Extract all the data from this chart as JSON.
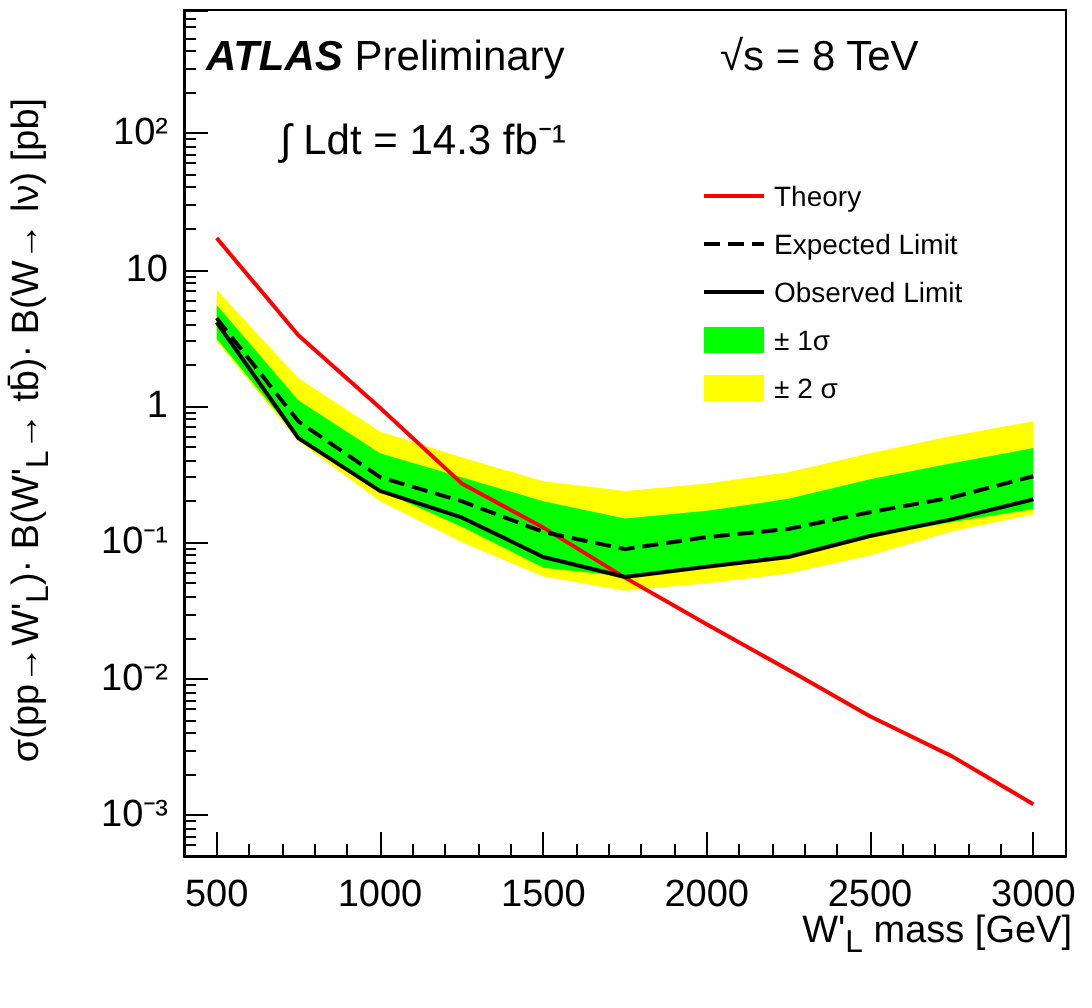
{
  "chart_data": {
    "type": "line",
    "xlabel": "W'$_{L}$ mass [GeV]",
    "ylabel": "σ(pp→W'$_{L}$)· B(W'$_{L}$→ tb̄)· B(W→ lν) [pb]",
    "annotations": [
      "ATLAS Preliminary",
      "√s = 8 TeV",
      "∫ Ldt = 14.3 fb⁻¹"
    ],
    "x": [
      500,
      750,
      1000,
      1250,
      1500,
      1750,
      2000,
      2250,
      2500,
      2750,
      3000
    ],
    "series": [
      {
        "name": "Theory",
        "color": "#ff0000",
        "line_style": "solid",
        "values": [
          17,
          3.3,
          0.97,
          0.27,
          0.128,
          0.055,
          0.025,
          0.0116,
          0.0053,
          0.0027,
          0.0012
        ]
      },
      {
        "name": "Expected Limit",
        "color": "#000000",
        "line_style": "dashed",
        "values": [
          4.4,
          0.77,
          0.3,
          0.2,
          0.119,
          0.089,
          0.109,
          0.125,
          0.166,
          0.213,
          0.305
        ]
      },
      {
        "name": "Observed Limit",
        "color": "#000000",
        "line_style": "solid",
        "values": [
          4.1,
          0.58,
          0.238,
          0.152,
          0.078,
          0.0556,
          0.066,
          0.078,
          0.111,
          0.147,
          0.206
        ]
      },
      {
        "name": "± 1σ",
        "type": "area",
        "color": "#00ff00",
        "values": [
          null,
          null,
          null,
          null,
          null,
          null,
          null,
          null,
          null,
          null,
          null
        ],
        "lower": [
          3.1,
          0.58,
          0.24,
          0.13,
          0.065,
          0.056,
          0.066,
          0.078,
          0.11,
          0.14,
          0.175
        ],
        "upper": [
          5.5,
          1.1,
          0.45,
          0.3,
          0.2,
          0.149,
          0.17,
          0.208,
          0.29,
          0.38,
          0.49
        ]
      },
      {
        "name": "± 2 σ",
        "type": "area",
        "color": "#ffff00",
        "values": [
          null,
          null,
          null,
          null,
          null,
          null,
          null,
          null,
          null,
          null,
          null
        ],
        "lower": [
          2.96,
          0.55,
          0.2,
          0.1,
          0.056,
          0.044,
          0.05,
          0.059,
          0.08,
          0.12,
          0.16
        ],
        "upper": [
          7.1,
          1.6,
          0.65,
          0.42,
          0.28,
          0.238,
          0.27,
          0.326,
          0.45,
          0.6,
          0.77
        ]
      }
    ],
    "log": "y",
    "xlim": [
      400,
      3100
    ],
    "xticks": [
      500,
      1000,
      1500,
      2000,
      2500,
      3000
    ],
    "ylim": [
      0.0005,
      800
    ],
    "yticks": [
      {
        "value": 0.001,
        "label": "10⁻³"
      },
      {
        "value": 0.01,
        "label": "10⁻²"
      },
      {
        "value": 0.1,
        "label": "10⁻¹"
      },
      1,
      10,
      {
        "value": 100,
        "label": "10²"
      }
    ],
    "grid": false,
    "legend": "top right",
    "marker": "none"
  }
}
